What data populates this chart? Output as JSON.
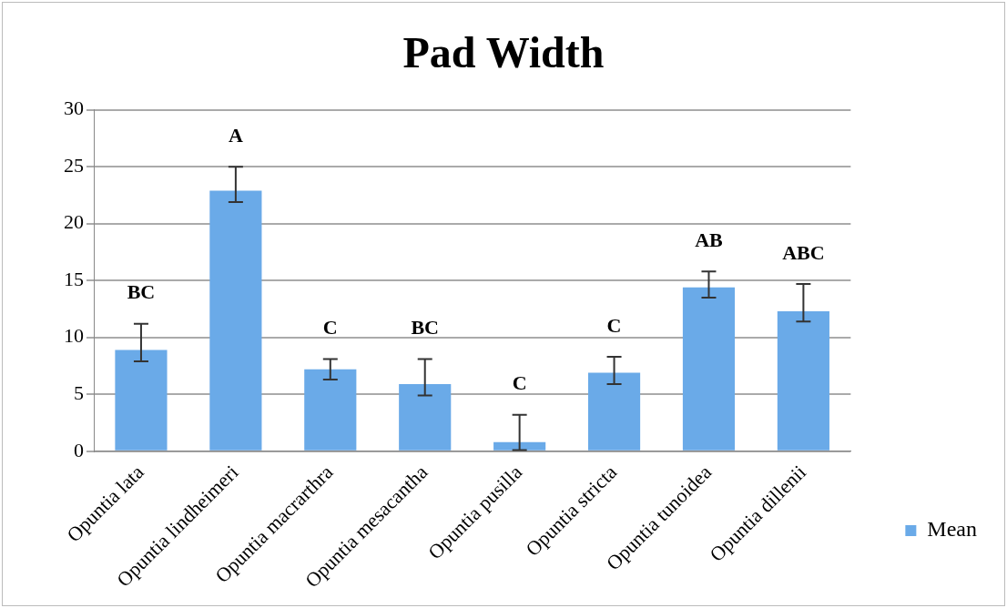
{
  "chart_data": {
    "type": "bar",
    "title": "Pad Width",
    "categories": [
      "Opuntia lata",
      "Opuntia lindheimeri",
      "Opuntia macrarthra",
      "Opuntia mesacantha",
      "Opuntia pusilla",
      "Opuntia stricta",
      "Opuntia tunoidea",
      "Opuntia dillenii"
    ],
    "series": [
      {
        "name": "Mean",
        "color": "#6aaae8",
        "values": [
          8.9,
          22.9,
          7.2,
          5.9,
          0.8,
          6.9,
          14.4,
          12.3
        ],
        "errors": [
          [
            7.9,
            11.2
          ],
          [
            21.9,
            25.0
          ],
          [
            6.3,
            8.1
          ],
          [
            4.9,
            8.1
          ],
          [
            0.1,
            3.2
          ],
          [
            5.9,
            8.3
          ],
          [
            13.5,
            15.8
          ],
          [
            11.4,
            14.7
          ]
        ],
        "value_labels": [
          "BC",
          "A",
          "C",
          "BC",
          "C",
          "C",
          "AB",
          "ABC"
        ]
      }
    ],
    "ylim": [
      0,
      30
    ],
    "yticks": [
      0,
      5,
      10,
      15,
      20,
      25,
      30
    ],
    "grid": "y",
    "legend": "right"
  }
}
